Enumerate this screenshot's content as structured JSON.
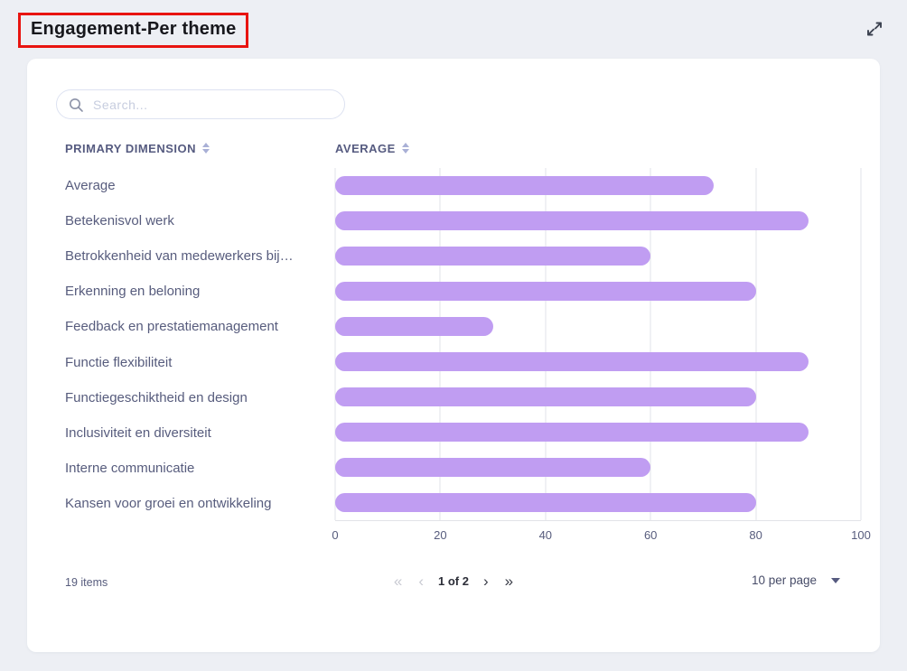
{
  "header": {
    "title": "Engagement-Per theme"
  },
  "search": {
    "placeholder": "Search..."
  },
  "table": {
    "columns": [
      {
        "label": "PRIMARY DIMENSION"
      },
      {
        "label": "AVERAGE"
      }
    ]
  },
  "footer": {
    "items_count": "19 items",
    "pagination": {
      "first": "«",
      "prev": "‹",
      "label": "1 of 2",
      "next": "›",
      "last": "»"
    },
    "page_size": "10 per page"
  },
  "chart_data": {
    "type": "bar",
    "orientation": "horizontal",
    "title": "Engagement-Per theme",
    "categories": [
      "Average",
      "Betekenisvol werk",
      "Betrokkenheid van medewerkers bij…",
      "Erkenning en beloning",
      "Feedback en prestatiemanagement",
      "Functie flexibiliteit",
      "Functiegeschiktheid en design",
      "Inclusiviteit en diversiteit",
      "Interne communicatie",
      "Kansen voor groei en ontwikkeling"
    ],
    "values": [
      72,
      90,
      60,
      80,
      30,
      90,
      80,
      90,
      60,
      80
    ],
    "xlabel": "",
    "ylabel": "",
    "xlim": [
      0,
      100
    ],
    "x_ticks": [
      0,
      20,
      40,
      60,
      80,
      100
    ],
    "grid": true,
    "legend": false,
    "bar_color": "#c09df2"
  },
  "colors": {
    "accent_bar": "#c09df2",
    "title_outline_red": "#e81410",
    "text_primary": "#575c7d",
    "header_text": "#565b80",
    "page_background": "#edeff4",
    "card_background": "#ffffff",
    "gridline": "#e2e3e8"
  }
}
